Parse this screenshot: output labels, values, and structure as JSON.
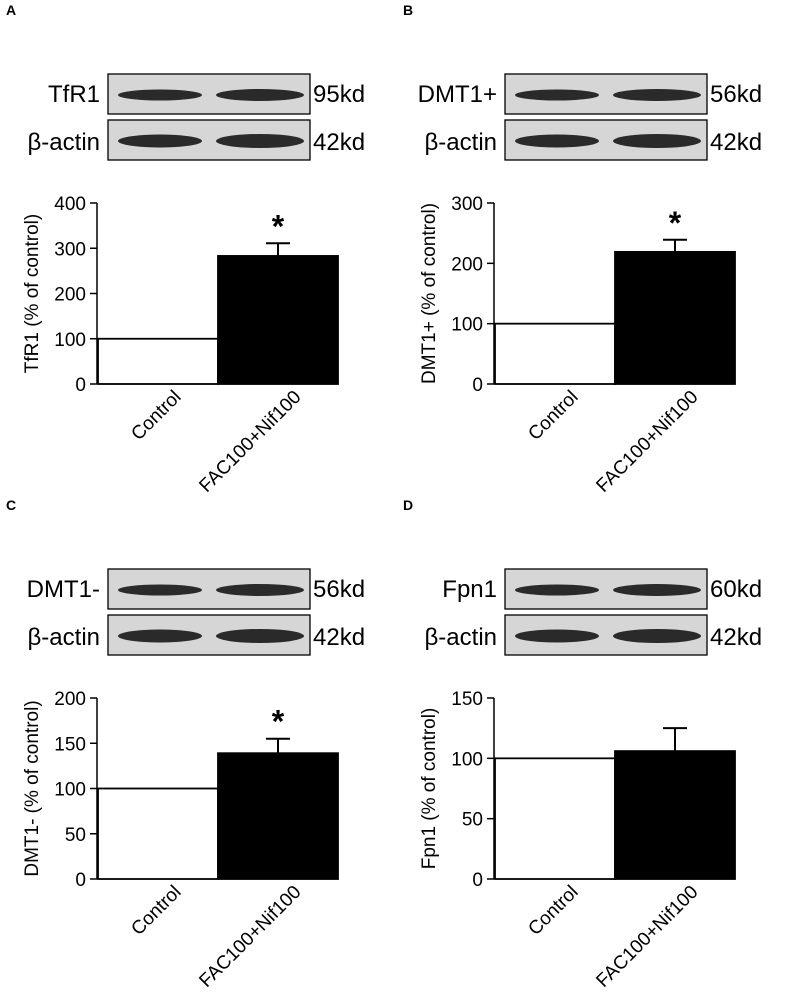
{
  "panels": [
    {
      "letter": "A",
      "blot": {
        "protein": "TfR1",
        "protein_kd": "95kd",
        "loading": "β-actin",
        "loading_kd": "42kd"
      },
      "significance": "*"
    },
    {
      "letter": "B",
      "blot": {
        "protein": "DMT1+",
        "protein_kd": "56kd",
        "loading": "β-actin",
        "loading_kd": "42kd"
      },
      "significance": "*"
    },
    {
      "letter": "C",
      "blot": {
        "protein": "DMT1-",
        "protein_kd": "56kd",
        "loading": "β-actin",
        "loading_kd": "42kd"
      },
      "significance": "*"
    },
    {
      "letter": "D",
      "blot": {
        "protein": "Fpn1",
        "protein_kd": "60kd",
        "loading": "β-actin",
        "loading_kd": "42kd"
      },
      "significance": ""
    }
  ],
  "colors": {
    "control_bar": "#ffffff",
    "treatment_bar": "#000000",
    "band": "#1b1b1b",
    "blot_background": "#d6d6d6"
  },
  "chart_data": [
    {
      "type": "bar",
      "categories": [
        "Control",
        "FAC100+Nif100"
      ],
      "values": [
        100,
        283
      ],
      "error": [
        0,
        28
      ],
      "ylabel": "TfR1 (% of control)",
      "ylim": [
        0,
        400
      ],
      "yticks": [
        0,
        100,
        200,
        300,
        400
      ],
      "grid": false
    },
    {
      "type": "bar",
      "categories": [
        "Control",
        "FAC100+Nif100"
      ],
      "values": [
        100,
        219
      ],
      "error": [
        0,
        20
      ],
      "ylabel": "DMT1+ (% of control)",
      "ylim": [
        0,
        300
      ],
      "yticks": [
        0,
        100,
        200,
        300
      ],
      "grid": false
    },
    {
      "type": "bar",
      "categories": [
        "Control",
        "FAC100+Nif100"
      ],
      "values": [
        100,
        139
      ],
      "error": [
        0,
        16
      ],
      "ylabel": "DMT1- (% of control)",
      "ylim": [
        0,
        200
      ],
      "yticks": [
        0,
        50,
        100,
        150,
        200
      ],
      "grid": false
    },
    {
      "type": "bar",
      "categories": [
        "Control",
        "FAC100+Nif100"
      ],
      "values": [
        100,
        106
      ],
      "error": [
        0,
        19
      ],
      "ylabel": "Fpn1 (% of control)",
      "ylim": [
        0,
        150
      ],
      "yticks": [
        0,
        50,
        100,
        150
      ],
      "grid": false
    }
  ]
}
